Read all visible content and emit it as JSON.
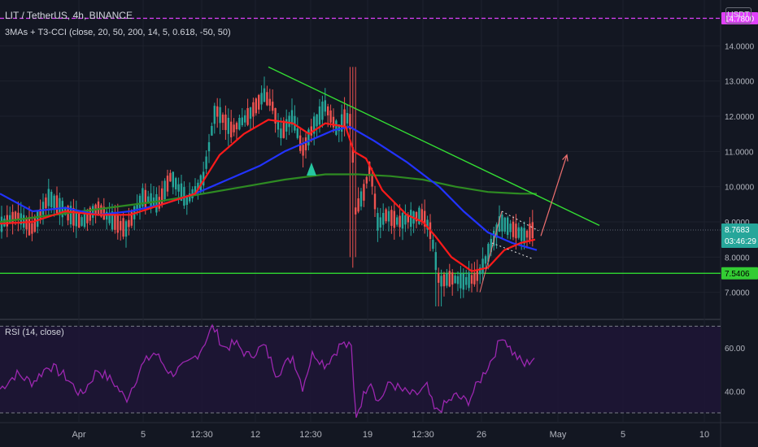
{
  "header": {
    "title": "LIT / TetherUS, 4h, BINANCE",
    "indicator": "3MAs + T3-CCI (close, 20, 50, 200, 14, 5, 0.618, -50, 50)",
    "currency": "USDT"
  },
  "rsi": {
    "label": "RSI (14, close)",
    "ticks": [
      "60.00",
      "40.00"
    ],
    "upper": 70,
    "lower": 30,
    "ylim": [
      27,
      72
    ],
    "color": "#9c27b0"
  },
  "price_axis": {
    "ticks": [
      "14.0000",
      "13.0000",
      "12.0000",
      "11.0000",
      "10.0000",
      "9.0000",
      "8.0000",
      "7.0000"
    ],
    "ylim": [
      6.3,
      15.3
    ],
    "badges": {
      "top_level": "14.7800",
      "current": "8.7683",
      "countdown": "03:46:29",
      "support": "7.5406"
    }
  },
  "time_axis": {
    "labels": [
      "Apr",
      "5",
      "12:30",
      "12",
      "12:30",
      "19",
      "12:30",
      "26",
      "May",
      "5",
      "10"
    ]
  },
  "colors": {
    "background": "#131722",
    "up": "#26a69a",
    "down": "#ef5350",
    "ma20": "#ff1a1a",
    "ma50": "#2233ff",
    "ma200": "#2e8b22",
    "trendline": "#33dd33",
    "top_level": "#e040fb",
    "support": "#33ee33",
    "projection": "#f07070"
  },
  "chart_data": [
    {
      "type": "candlestick",
      "series": [
        {
          "name": "LIT / TetherUS, 4h, BINANCE"
        }
      ],
      "price_anchors": [
        [
          0,
          8.9
        ],
        [
          20,
          9.2
        ],
        [
          40,
          8.8
        ],
        [
          60,
          9.7
        ],
        [
          80,
          9.3
        ],
        [
          100,
          9.0
        ],
        [
          120,
          9.4
        ],
        [
          140,
          9.0
        ],
        [
          155,
          8.8
        ],
        [
          175,
          9.7
        ],
        [
          195,
          9.5
        ],
        [
          210,
          10.3
        ],
        [
          230,
          9.6
        ],
        [
          250,
          10.2
        ],
        [
          265,
          12.2
        ],
        [
          285,
          11.6
        ],
        [
          305,
          12.0
        ],
        [
          325,
          12.6
        ],
        [
          335,
          12.3
        ],
        [
          345,
          11.5
        ],
        [
          360,
          12.0
        ],
        [
          372,
          11.0
        ],
        [
          385,
          11.7
        ],
        [
          400,
          12.3
        ],
        [
          415,
          11.6
        ],
        [
          425,
          12.0
        ],
        [
          432,
          11.8
        ],
        [
          437,
          9.3
        ],
        [
          447,
          9.8
        ],
        [
          455,
          10.6
        ],
        [
          465,
          8.9
        ],
        [
          475,
          9.2
        ],
        [
          490,
          9.0
        ],
        [
          505,
          9.1
        ],
        [
          520,
          9.2
        ],
        [
          530,
          8.7
        ],
        [
          540,
          7.3
        ],
        [
          555,
          7.4
        ],
        [
          570,
          7.3
        ],
        [
          585,
          7.4
        ],
        [
          595,
          7.8
        ],
        [
          605,
          8.4
        ],
        [
          615,
          9.0
        ],
        [
          630,
          8.8
        ],
        [
          645,
          8.6
        ],
        [
          657,
          8.8
        ]
      ],
      "ma20": [
        [
          0,
          8.95
        ],
        [
          40,
          9.0
        ],
        [
          80,
          9.3
        ],
        [
          120,
          9.2
        ],
        [
          160,
          9.2
        ],
        [
          200,
          9.5
        ],
        [
          240,
          9.8
        ],
        [
          270,
          10.9
        ],
        [
          300,
          11.5
        ],
        [
          330,
          11.9
        ],
        [
          360,
          11.8
        ],
        [
          380,
          11.5
        ],
        [
          400,
          11.8
        ],
        [
          425,
          11.7
        ],
        [
          435,
          11.0
        ],
        [
          450,
          10.8
        ],
        [
          470,
          9.9
        ],
        [
          500,
          9.2
        ],
        [
          520,
          9.0
        ],
        [
          535,
          8.6
        ],
        [
          555,
          8.0
        ],
        [
          580,
          7.6
        ],
        [
          600,
          7.7
        ],
        [
          620,
          8.2
        ],
        [
          640,
          8.4
        ],
        [
          658,
          8.5
        ]
      ],
      "ma50": [
        [
          0,
          9.8
        ],
        [
          40,
          9.3
        ],
        [
          80,
          9.4
        ],
        [
          120,
          9.2
        ],
        [
          160,
          9.3
        ],
        [
          200,
          9.5
        ],
        [
          240,
          9.8
        ],
        [
          280,
          10.2
        ],
        [
          320,
          10.6
        ],
        [
          350,
          11.0
        ],
        [
          380,
          11.3
        ],
        [
          410,
          11.6
        ],
        [
          430,
          11.7
        ],
        [
          460,
          11.3
        ],
        [
          500,
          10.7
        ],
        [
          540,
          10.0
        ],
        [
          570,
          9.3
        ],
        [
          600,
          8.7
        ],
        [
          630,
          8.4
        ],
        [
          660,
          8.2
        ]
      ],
      "ma200": [
        [
          0,
          9.0
        ],
        [
          50,
          9.15
        ],
        [
          100,
          9.3
        ],
        [
          150,
          9.45
        ],
        [
          200,
          9.6
        ],
        [
          250,
          9.8
        ],
        [
          300,
          10.0
        ],
        [
          350,
          10.2
        ],
        [
          400,
          10.35
        ],
        [
          440,
          10.35
        ],
        [
          480,
          10.3
        ],
        [
          520,
          10.2
        ],
        [
          560,
          10.0
        ],
        [
          600,
          9.85
        ],
        [
          640,
          9.8
        ],
        [
          660,
          9.8
        ]
      ],
      "trendline": [
        [
          330,
          13.4
        ],
        [
          737,
          8.9
        ]
      ],
      "support_level": 7.5406,
      "top_level": 14.78,
      "current_price": 8.7683,
      "projection": [
        [
          665,
          8.6
        ],
        [
          697,
          10.9
        ]
      ],
      "buy_marker": [
        383,
        10.5
      ],
      "flag_pattern": {
        "pole": [
          [
            590,
            7.0
          ],
          [
            617,
            9.3
          ]
        ],
        "upper": [
          [
            617,
            9.3
          ],
          [
            662,
            8.75
          ]
        ],
        "lower": [
          [
            605,
            8.4
          ],
          [
            655,
            7.95
          ]
        ]
      }
    },
    {
      "type": "line",
      "series": [
        {
          "name": "RSI (14, close)"
        }
      ],
      "anchors": [
        [
          0,
          41
        ],
        [
          20,
          48
        ],
        [
          40,
          44
        ],
        [
          60,
          52
        ],
        [
          80,
          47
        ],
        [
          100,
          38
        ],
        [
          120,
          50
        ],
        [
          140,
          44
        ],
        [
          155,
          36
        ],
        [
          175,
          52
        ],
        [
          190,
          58
        ],
        [
          210,
          48
        ],
        [
          230,
          52
        ],
        [
          245,
          58
        ],
        [
          262,
          70
        ],
        [
          275,
          60
        ],
        [
          290,
          62
        ],
        [
          305,
          56
        ],
        [
          325,
          61
        ],
        [
          340,
          48
        ],
        [
          360,
          56
        ],
        [
          372,
          42
        ],
        [
          385,
          58
        ],
        [
          400,
          52
        ],
        [
          420,
          62
        ],
        [
          432,
          60
        ],
        [
          437,
          28
        ],
        [
          447,
          38
        ],
        [
          455,
          46
        ],
        [
          465,
          35
        ],
        [
          480,
          44
        ],
        [
          495,
          40
        ],
        [
          510,
          38
        ],
        [
          525,
          42
        ],
        [
          535,
          30
        ],
        [
          545,
          33
        ],
        [
          560,
          38
        ],
        [
          575,
          35
        ],
        [
          590,
          45
        ],
        [
          605,
          55
        ],
        [
          618,
          66
        ],
        [
          630,
          58
        ],
        [
          645,
          52
        ],
        [
          658,
          56
        ]
      ]
    }
  ]
}
